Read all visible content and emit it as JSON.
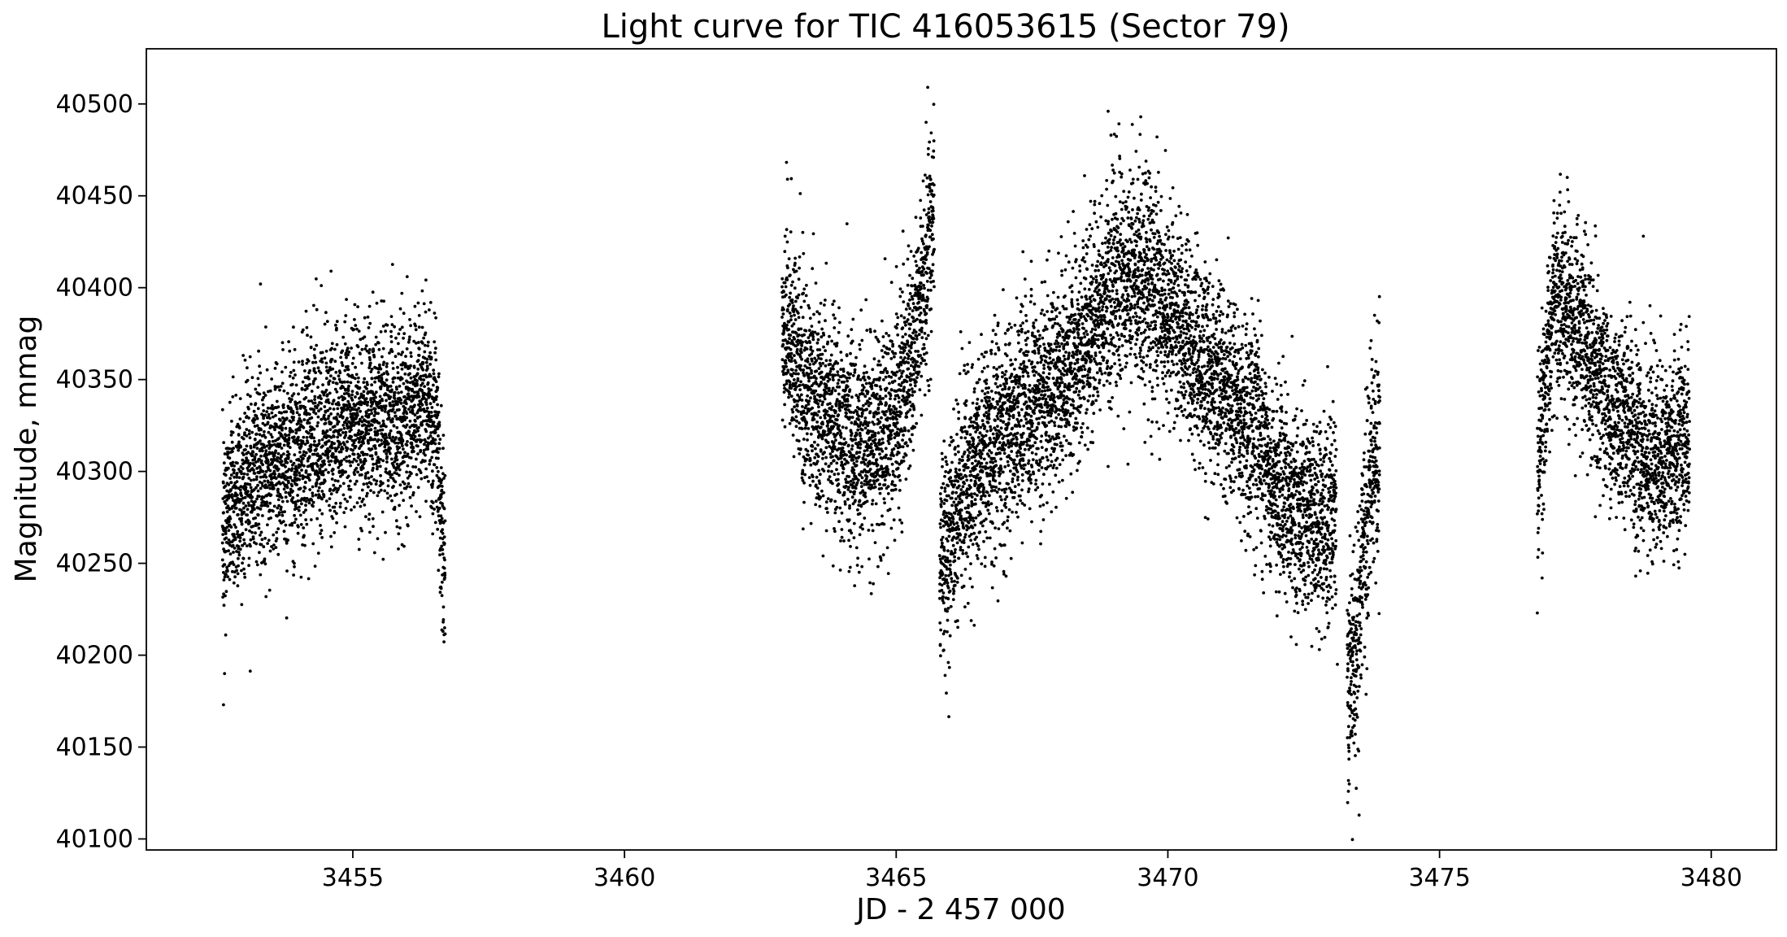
{
  "chart_data": {
    "type": "scatter",
    "title": "Light curve for TIC 416053615 (Sector 79)",
    "xlabel": "JD - 2 457 000",
    "ylabel": "Magnitude, mmag",
    "xlim": [
      3451.2,
      3481.2
    ],
    "ylim": [
      40094,
      40530
    ],
    "x_ticks": [
      3455,
      3460,
      3465,
      3470,
      3475,
      3480
    ],
    "x_tick_labels": [
      "3455",
      "3460",
      "3465",
      "3470",
      "3475",
      "3480"
    ],
    "y_ticks": [
      40100,
      40150,
      40200,
      40250,
      40300,
      40350,
      40400,
      40450,
      40500
    ],
    "y_tick_labels": [
      "40100",
      "40150",
      "40200",
      "40250",
      "40300",
      "40350",
      "40400",
      "40450",
      "40500"
    ],
    "grid": false,
    "legend": "none",
    "marker_color": "#000000",
    "series": [
      {
        "segments": [
          {
            "x_range": [
              3452.6,
              3456.7
            ],
            "trend": [
              [
                3452.6,
                40275
              ],
              [
                3453.2,
                40300
              ],
              [
                3454.0,
                40310
              ],
              [
                3455.0,
                40330
              ],
              [
                3455.8,
                40325
              ],
              [
                3456.3,
                40345
              ],
              [
                3456.55,
                40320
              ],
              [
                3456.7,
                40240
              ]
            ],
            "scatter": 26
          },
          {
            "x_range": [
              3462.9,
              3465.7
            ],
            "trend": [
              [
                3462.9,
                40375
              ],
              [
                3463.5,
                40340
              ],
              [
                3464.3,
                40310
              ],
              [
                3465.0,
                40330
              ],
              [
                3465.4,
                40380
              ],
              [
                3465.65,
                40430
              ]
            ],
            "scatter": 28
          },
          {
            "x_range": [
              3465.8,
              3473.1
            ],
            "trend": [
              [
                3465.8,
                40250
              ],
              [
                3466.2,
                40290
              ],
              [
                3467.0,
                40325
              ],
              [
                3468.0,
                40345
              ],
              [
                3469.0,
                40400
              ],
              [
                3469.6,
                40405
              ],
              [
                3470.5,
                40365
              ],
              [
                3471.5,
                40330
              ],
              [
                3472.0,
                40290
              ],
              [
                3472.8,
                40270
              ],
              [
                3473.1,
                40280
              ]
            ],
            "scatter": 28
          },
          {
            "x_range": [
              3473.3,
              3473.9
            ],
            "trend": [
              [
                3473.3,
                40180
              ],
              [
                3473.45,
                40200
              ],
              [
                3473.6,
                40260
              ],
              [
                3473.75,
                40300
              ],
              [
                3473.9,
                40310
              ]
            ],
            "scatter": 30
          },
          {
            "x_range": [
              3476.8,
              3479.6
            ],
            "trend": [
              [
                3476.8,
                40300
              ],
              [
                3477.1,
                40390
              ],
              [
                3477.5,
                40380
              ],
              [
                3478.0,
                40345
              ],
              [
                3478.5,
                40320
              ],
              [
                3479.0,
                40305
              ],
              [
                3479.6,
                40320
              ]
            ],
            "scatter": 26
          }
        ],
        "points": [
          [
            3452.62,
            40173
          ],
          [
            3452.64,
            40190
          ],
          [
            3452.66,
            40211
          ],
          [
            3456.66,
            40213
          ],
          [
            3465.58,
            40509
          ],
          [
            3465.9,
            40189
          ],
          [
            3465.55,
            40490
          ],
          [
            3463.0,
            40459
          ],
          [
            3473.52,
            40113
          ],
          [
            3473.45,
            40157
          ],
          [
            3473.12,
            40195
          ],
          [
            3476.8,
            40223
          ],
          [
            3468.9,
            40496
          ],
          [
            3469.5,
            40493
          ],
          [
            3469.8,
            40482
          ],
          [
            3477.35,
            40460
          ],
          [
            3478.75,
            40428
          ],
          [
            3453.3,
            40402
          ],
          [
            3454.6,
            40409
          ],
          [
            3456.0,
            40406
          ]
        ]
      }
    ]
  }
}
